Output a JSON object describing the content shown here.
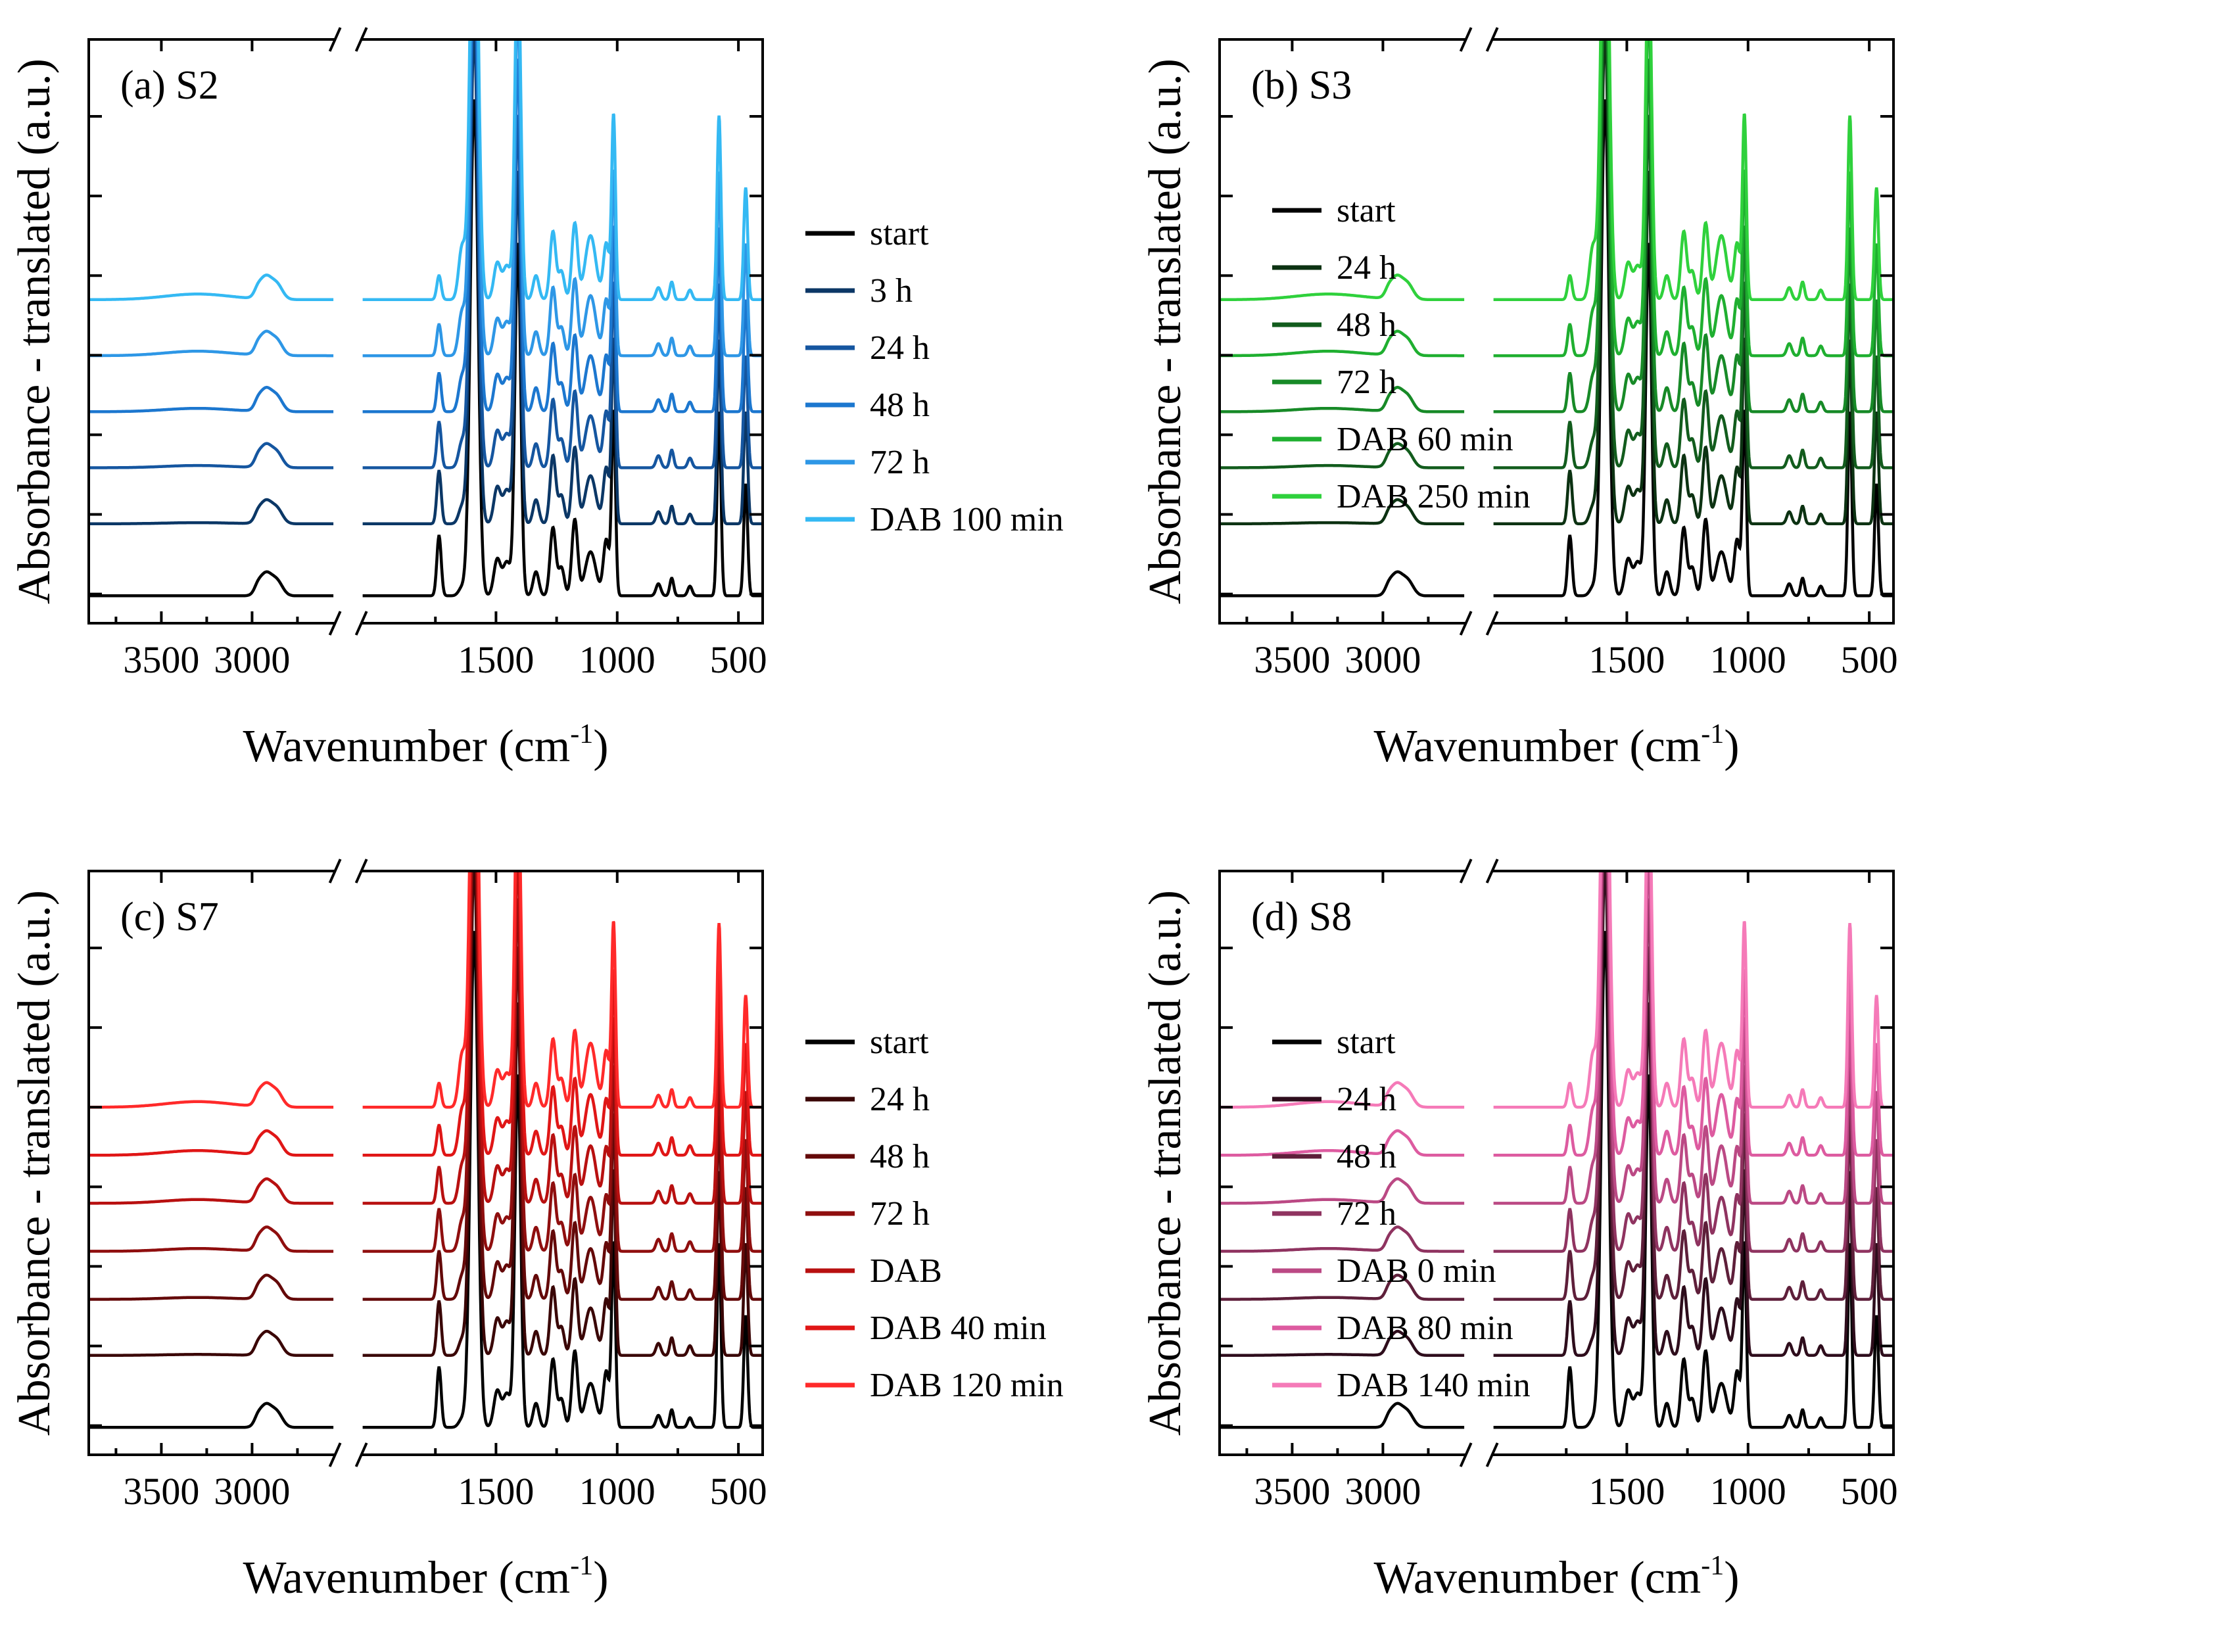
{
  "figure": {
    "xlabel": "Wavenumber (cm",
    "xlabel_sup": "-1",
    "xlabel_end": ")",
    "ylabel": "Absorbance - translated (a.u.)"
  },
  "chart_data": [
    {
      "type": "line",
      "panel": "(a) S2",
      "xlabel": "Wavenumber (cm-1)",
      "ylabel": "Absorbance - translated (a.u.)",
      "x_ticks": [
        3500,
        3000,
        1500,
        1000,
        500
      ],
      "xlim_left_segment": [
        3900,
        2550
      ],
      "xlim_right_segment": [
        2050,
        400
      ],
      "axis_break": "2550-2050",
      "offsets": [
        0,
        0.9,
        1.6,
        2.3,
        3.0,
        3.7
      ],
      "series": [
        {
          "name": "start",
          "color": "#000000"
        },
        {
          "name": "3 h",
          "color": "#0b3766"
        },
        {
          "name": "24 h",
          "color": "#1556a0"
        },
        {
          "name": "48 h",
          "color": "#1c77cf"
        },
        {
          "name": "72 h",
          "color": "#2e97e6"
        },
        {
          "name": "DAB 100 min",
          "color": "#34b9f3"
        }
      ]
    },
    {
      "type": "line",
      "panel": "(b) S3",
      "xlabel": "Wavenumber (cm-1)",
      "ylabel": "Absorbance - translated (a.u.)",
      "x_ticks": [
        3500,
        3000,
        1500,
        1000,
        500
      ],
      "xlim_left_segment": [
        3900,
        2550
      ],
      "xlim_right_segment": [
        2050,
        400
      ],
      "axis_break": "2550-2050",
      "offsets": [
        0,
        0.9,
        1.6,
        2.3,
        3.0,
        3.7
      ],
      "series": [
        {
          "name": "start",
          "color": "#000000"
        },
        {
          "name": "24 h",
          "color": "#0c3212"
        },
        {
          "name": "48 h",
          "color": "#125c1d"
        },
        {
          "name": "72 h",
          "color": "#178a27"
        },
        {
          "name": "DAB 60 min",
          "color": "#1faf30"
        },
        {
          "name": "DAB 250 min",
          "color": "#2fd13c"
        }
      ]
    },
    {
      "type": "line",
      "panel": "(c) S7",
      "xlabel": "Wavenumber (cm-1)",
      "ylabel": "Absorbance - translated (a.u.)",
      "x_ticks": [
        3500,
        3000,
        1500,
        1000,
        500
      ],
      "xlim_left_segment": [
        3900,
        2550
      ],
      "xlim_right_segment": [
        2050,
        400
      ],
      "axis_break": "2550-2050",
      "offsets": [
        0,
        0.9,
        1.6,
        2.2,
        2.8,
        3.4,
        4.0
      ],
      "series": [
        {
          "name": "start",
          "color": "#000000"
        },
        {
          "name": "24 h",
          "color": "#3a0606"
        },
        {
          "name": "48 h",
          "color": "#640909"
        },
        {
          "name": "72 h",
          "color": "#8f0e0e"
        },
        {
          "name": "DAB",
          "color": "#b81010"
        },
        {
          "name": "DAB 40 min",
          "color": "#e01616"
        },
        {
          "name": "DAB 120 min",
          "color": "#ff2a2a"
        }
      ]
    },
    {
      "type": "line",
      "panel": "(d) S8",
      "xlabel": "Wavenumber (cm-1)",
      "ylabel": "Absorbance - translated (a.u.)",
      "x_ticks": [
        3500,
        3000,
        1500,
        1000,
        500
      ],
      "xlim_left_segment": [
        3900,
        2550
      ],
      "xlim_right_segment": [
        2050,
        400
      ],
      "axis_break": "2550-2050",
      "offsets": [
        0,
        0.9,
        1.6,
        2.2,
        2.8,
        3.4,
        4.0
      ],
      "series": [
        {
          "name": "start",
          "color": "#000000"
        },
        {
          "name": "24 h",
          "color": "#2e0d1c"
        },
        {
          "name": "48 h",
          "color": "#5e1f3a"
        },
        {
          "name": "72 h",
          "color": "#8f3360"
        },
        {
          "name": "DAB 0 min",
          "color": "#bb4984"
        },
        {
          "name": "DAB 80 min",
          "color": "#dd5ba0"
        },
        {
          "name": "DAB 140 min",
          "color": "#f57ab8"
        }
      ]
    }
  ]
}
